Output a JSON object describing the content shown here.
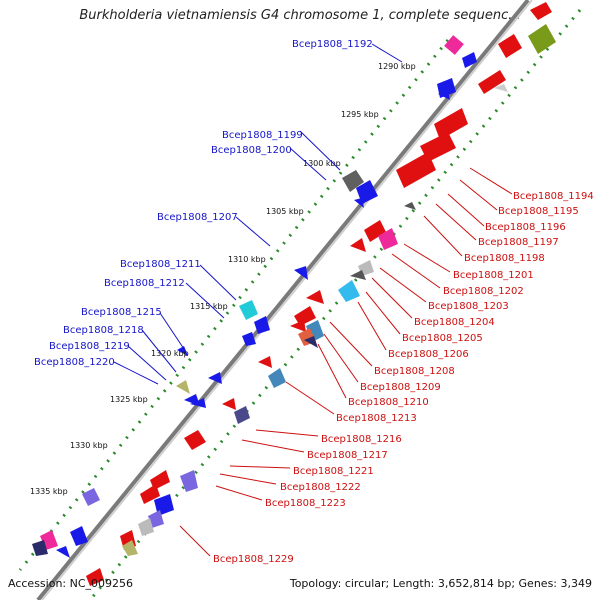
{
  "title": "Burkholderia vietnamiensis G4 chromosome 1, complete sequenc...",
  "accession_text": "Accession: NC_009256",
  "topology_text": "Topology: circular; Length: 3,652,814 bp; Genes: 3,349",
  "ticks": [
    "1290 kbp",
    "1295 kbp",
    "1300 kbp",
    "1305 kbp",
    "1310 kbp",
    "1315 kbp",
    "1320 kbp",
    "1325 kbp",
    "1330 kbp",
    "1335 kbp"
  ],
  "left_labels": [
    "Bcep1808_1192",
    "Bcep1808_1199",
    "Bcep1808_1200",
    "Bcep1808_1207",
    "Bcep1808_1211",
    "Bcep1808_1212",
    "Bcep1808_1215",
    "Bcep1808_1218",
    "Bcep1808_1219",
    "Bcep1808_1220"
  ],
  "right_labels": [
    "Bcep1808_1194",
    "Bcep1808_1195",
    "Bcep1808_1196",
    "Bcep1808_1197",
    "Bcep1808_1198",
    "Bcep1808_1201",
    "Bcep1808_1202",
    "Bcep1808_1203",
    "Bcep1808_1204",
    "Bcep1808_1205",
    "Bcep1808_1206",
    "Bcep1808_1208",
    "Bcep1808_1209",
    "Bcep1808_1210",
    "Bcep1808_1213",
    "Bcep1808_1216",
    "Bcep1808_1217",
    "Bcep1808_1221",
    "Bcep1808_1222",
    "Bcep1808_1223",
    "Bcep1808_1229"
  ],
  "colors": {
    "reverse_label": "#1515c8",
    "forward_label": "#cc1010",
    "backbone": "#7a7a7a",
    "dots": "#2a8a2a"
  }
}
